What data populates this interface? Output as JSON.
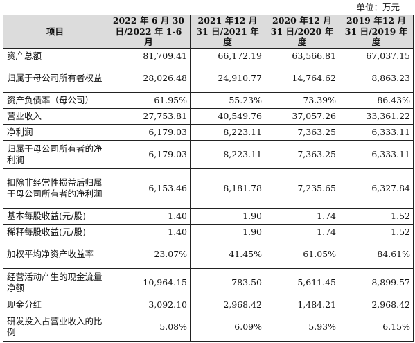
{
  "unit_label": "单位：万元",
  "headers": [
    "项目",
    "2022 年 6 月 30 日/2022 年 1-6 月",
    "2021 年12 月31 日/2021 年度",
    "2020 年12 月31 日/2020 年度",
    "2019 年12 月31 日/2019 年度"
  ],
  "rows": [
    {
      "label": "资产总额",
      "values": [
        "81,709.41",
        "66,172.19",
        "63,566.81",
        "67,037.15"
      ]
    },
    {
      "label": "归属于母公司所有者权益",
      "values": [
        "28,026.48",
        "24,910.77",
        "14,764.62",
        "8,863.23"
      ]
    },
    {
      "label": "资产负债率（母公司）",
      "values": [
        "61.95%",
        "55.23%",
        "73.39%",
        "86.43%"
      ]
    },
    {
      "label": "营业收入",
      "values": [
        "27,753.81",
        "40,549.76",
        "37,057.26",
        "33,361.22"
      ]
    },
    {
      "label": "净利润",
      "values": [
        "6,179.03",
        "8,223.11",
        "7,363.25",
        "6,333.11"
      ]
    },
    {
      "label": "归属于母公司所有者的净利润",
      "values": [
        "6,179.03",
        "8,223.11",
        "7,363.25",
        "6,333.11"
      ]
    },
    {
      "label": "扣除非经常性损益后归属于母公司所有者的净利润",
      "values": [
        "6,153.46",
        "8,181.78",
        "7,235.65",
        "6,327.84"
      ]
    },
    {
      "label": "基本每股收益(元/股)",
      "values": [
        "1.40",
        "1.90",
        "1.74",
        "1.52"
      ]
    },
    {
      "label": "稀释每股收益(元/股)",
      "values": [
        "1.40",
        "1.90",
        "1.74",
        "1.52"
      ]
    },
    {
      "label": "加权平均净资产收益率",
      "values": [
        "23.07%",
        "41.45%",
        "61.05%",
        "84.61%"
      ]
    },
    {
      "label": "经营活动产生的现金流量净额",
      "values": [
        "10,964.15",
        "-783.50",
        "5,611.45",
        "8,899.57"
      ]
    },
    {
      "label": "现金分红",
      "values": [
        "3,092.10",
        "2,968.42",
        "1,484.21",
        "2,968.42"
      ]
    },
    {
      "label": "研发投入占营业收入的比例",
      "values": [
        "5.08%",
        "6.09%",
        "5.93%",
        "6.15%"
      ]
    }
  ]
}
